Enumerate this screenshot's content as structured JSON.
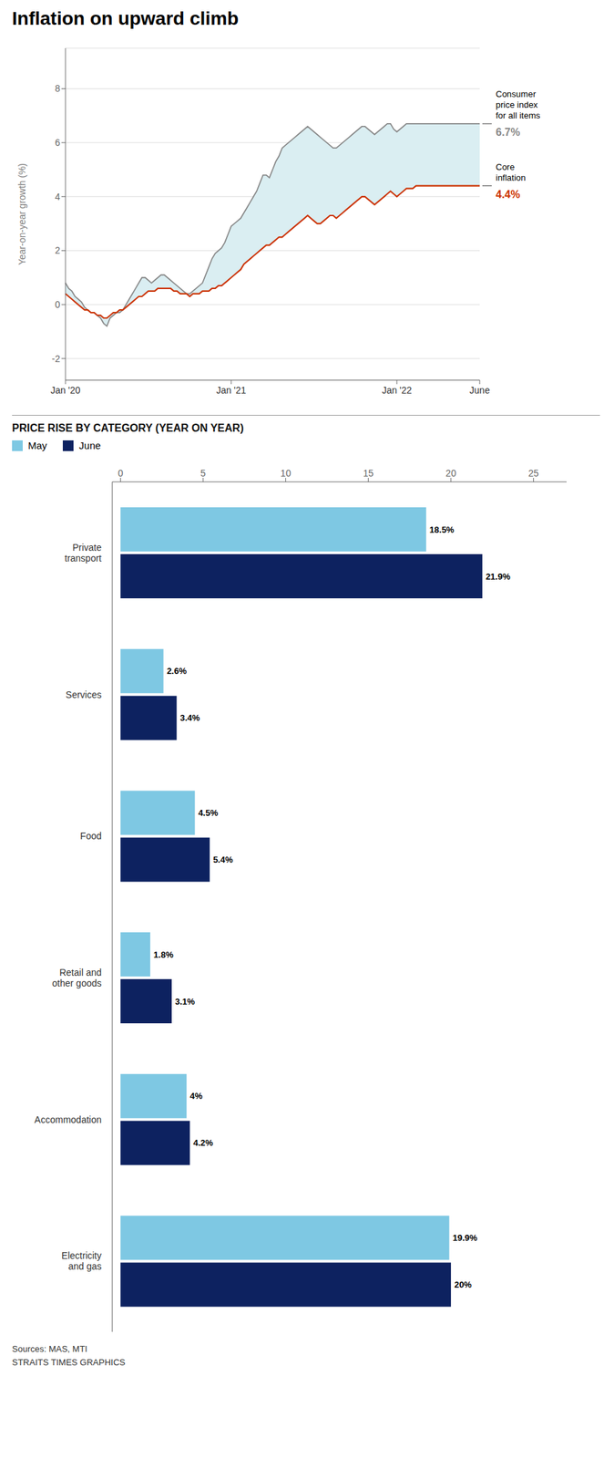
{
  "chart_data": [
    {
      "type": "line",
      "title": "Inflation on upward climb",
      "y_label": "Year-on-year growth (%)",
      "color": "#daeef2",
      "grid": true,
      "ylim": [
        -2.8,
        9.5
      ],
      "yticks": [
        -2,
        0,
        2,
        4,
        6,
        8
      ],
      "categories": [
        "Jan '20",
        null,
        null,
        null,
        null,
        null,
        null,
        null,
        null,
        null,
        null,
        null,
        null,
        null,
        null,
        null,
        null,
        null,
        null,
        null,
        null,
        null,
        null,
        null,
        null,
        null,
        null,
        null,
        null,
        null,
        null,
        null,
        null,
        null,
        null,
        null,
        null,
        null,
        null,
        null,
        null,
        null,
        null,
        null,
        null,
        null,
        null,
        null,
        null,
        null,
        null,
        null,
        "Jan '21",
        null,
        null,
        null,
        null,
        null,
        null,
        null,
        null,
        null,
        null,
        null,
        null,
        null,
        null,
        null,
        null,
        null,
        null,
        null,
        null,
        null,
        null,
        null,
        null,
        null,
        null,
        null,
        null,
        null,
        null,
        null,
        null,
        null,
        null,
        null,
        null,
        null,
        null,
        null,
        null,
        null,
        null,
        null,
        null,
        null,
        null,
        null,
        null,
        null,
        null,
        null,
        "Jan '22",
        null,
        null,
        null,
        null,
        null,
        null,
        null,
        null,
        null,
        null,
        null,
        null,
        null,
        null,
        null,
        null,
        null,
        null,
        null,
        null,
        null,
        null,
        null,
        null,
        null,
        "June"
      ],
      "series": [
        {
          "color": "#888888",
          "values": [
            0.8,
            0.6,
            0.5,
            0.3,
            0.2,
            0.1,
            -0.1,
            -0.2,
            -0.3,
            -0.3,
            -0.4,
            -0.5,
            -0.7,
            -0.8,
            -0.5,
            -0.4,
            -0.3,
            -0.3,
            -0.2,
            0.0,
            0.2,
            0.4,
            0.6,
            0.8,
            1.0,
            1.0,
            0.9,
            0.8,
            0.9,
            1.0,
            1.1,
            1.1,
            1.0,
            0.9,
            0.8,
            0.7,
            0.6,
            0.5,
            0.4,
            0.4,
            0.5,
            0.6,
            0.7,
            0.8,
            1.1,
            1.4,
            1.7,
            1.9,
            2.0,
            2.1,
            2.3,
            2.6,
            2.9,
            3.0,
            3.1,
            3.2,
            3.4,
            3.6,
            3.8,
            4.0,
            4.2,
            4.5,
            4.8,
            4.8,
            4.7,
            5.0,
            5.3,
            5.5,
            5.8,
            5.9,
            6.0,
            6.1,
            6.2,
            6.3,
            6.4,
            6.5,
            6.6,
            6.5,
            6.4,
            6.3,
            6.2,
            6.1,
            6.0,
            5.9,
            5.8,
            5.8,
            5.9,
            6.0,
            6.1,
            6.2,
            6.3,
            6.4,
            6.5,
            6.6,
            6.6,
            6.5,
            6.4,
            6.3,
            6.4,
            6.5,
            6.6,
            6.7,
            6.7,
            6.5,
            6.4,
            6.5,
            6.6,
            6.7,
            6.7,
            6.7,
            6.7,
            6.7,
            6.7,
            6.7,
            6.7,
            6.7,
            6.7,
            6.7,
            6.7,
            6.7,
            6.7,
            6.7,
            6.7,
            6.7,
            6.7,
            6.7,
            6.7,
            6.7,
            6.7,
            6.7,
            6.7
          ]
        },
        {
          "color": "#cc3300",
          "values": [
            0.4,
            0.3,
            0.2,
            0.1,
            0.0,
            -0.1,
            -0.2,
            -0.2,
            -0.3,
            -0.3,
            -0.4,
            -0.4,
            -0.5,
            -0.5,
            -0.4,
            -0.3,
            -0.3,
            -0.2,
            -0.2,
            -0.1,
            0.0,
            0.1,
            0.2,
            0.3,
            0.3,
            0.4,
            0.5,
            0.5,
            0.5,
            0.6,
            0.6,
            0.6,
            0.6,
            0.6,
            0.5,
            0.5,
            0.4,
            0.4,
            0.4,
            0.3,
            0.4,
            0.4,
            0.4,
            0.5,
            0.5,
            0.5,
            0.6,
            0.6,
            0.7,
            0.7,
            0.8,
            0.9,
            1.0,
            1.1,
            1.2,
            1.3,
            1.5,
            1.6,
            1.7,
            1.8,
            1.9,
            2.0,
            2.1,
            2.2,
            2.2,
            2.3,
            2.4,
            2.5,
            2.5,
            2.6,
            2.7,
            2.8,
            2.9,
            3.0,
            3.1,
            3.2,
            3.3,
            3.2,
            3.1,
            3.0,
            3.0,
            3.1,
            3.2,
            3.3,
            3.3,
            3.2,
            3.3,
            3.4,
            3.5,
            3.6,
            3.7,
            3.8,
            3.9,
            4.0,
            4.0,
            3.9,
            3.8,
            3.7,
            3.8,
            3.9,
            4.0,
            4.1,
            4.2,
            4.1,
            4.0,
            4.1,
            4.2,
            4.3,
            4.3,
            4.3,
            4.4,
            4.4,
            4.4,
            4.4,
            4.4,
            4.4,
            4.4,
            4.4,
            4.4,
            4.4,
            4.4,
            4.4,
            4.4,
            4.4,
            4.4,
            4.4,
            4.4,
            4.4,
            4.4,
            4.4,
            4.4
          ]
        }
      ],
      "annotations": [
        {
          "text": "Consumer\nprice index\nfor all items",
          "value": 6.7,
          "label": "6.7%"
        },
        {
          "text": "Core\ninflation",
          "value": 4.4,
          "label": "4.4%"
        }
      ]
    },
    {
      "type": "bar",
      "orientation": "horizontal",
      "title": "PRICE RISE BY CATEGORY (YEAR ON YEAR)",
      "legend": "top left",
      "grid": false,
      "data_labels": true,
      "xlim": [
        -0.5,
        27
      ],
      "xticks": [
        0,
        5,
        10,
        15,
        20,
        25
      ],
      "categories": [
        "Private\ntransport",
        "Services",
        "Food",
        "Retail and\nother goods",
        "Accommodation",
        "Electricity\nand gas"
      ],
      "series": [
        {
          "name": "May",
          "color": "#7ec8e3",
          "values": [
            18.5,
            2.6,
            4.5,
            1.8,
            4.0,
            19.9
          ],
          "value_labels": [
            "18.5%",
            "2.6%",
            "4.5%",
            "1.8%",
            "4%",
            "19.9%"
          ]
        },
        {
          "name": "June",
          "color": "#0d2260",
          "values": [
            21.9,
            3.4,
            5.4,
            3.1,
            4.2,
            20.0
          ],
          "value_labels": [
            "21.9%",
            "3.4%",
            "5.4%",
            "3.1%",
            "4.2%",
            "20%"
          ]
        }
      ],
      "annotations": [
        {
          "text": "Sources: MAS, MTI\nSTRAITS TIMES GRAPHICS"
        }
      ]
    }
  ]
}
